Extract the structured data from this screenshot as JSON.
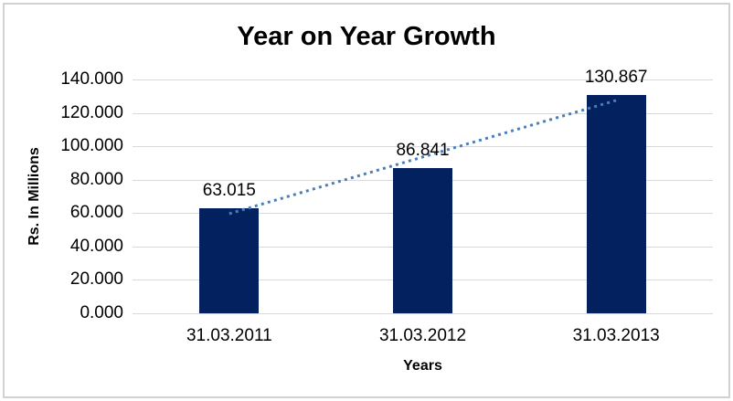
{
  "chart_data": {
    "type": "bar",
    "title": "Year on Year Growth",
    "xlabel": "Years",
    "ylabel": "Rs. In Millions",
    "categories": [
      "31.03.2011",
      "31.03.2012",
      "31.03.2013"
    ],
    "values": [
      63.015,
      86.841,
      130.867
    ],
    "data_labels": [
      "63.015",
      "86.841",
      "130.867"
    ],
    "ylim": [
      0,
      140
    ],
    "ytick_step": 20,
    "ytick_labels": [
      "0.000",
      "20.000",
      "40.000",
      "60.000",
      "80.000",
      "100.000",
      "120.000",
      "140.000"
    ],
    "grid": true,
    "legend": "none",
    "trendline": {
      "type": "linear",
      "style": "dotted"
    },
    "colors": {
      "bar": "#02215e",
      "trendline": "#4a7ebb",
      "gridline": "#d9d9d9",
      "text": "#000000",
      "frame_border": "#d2d2d2",
      "background": "#ffffff"
    }
  }
}
